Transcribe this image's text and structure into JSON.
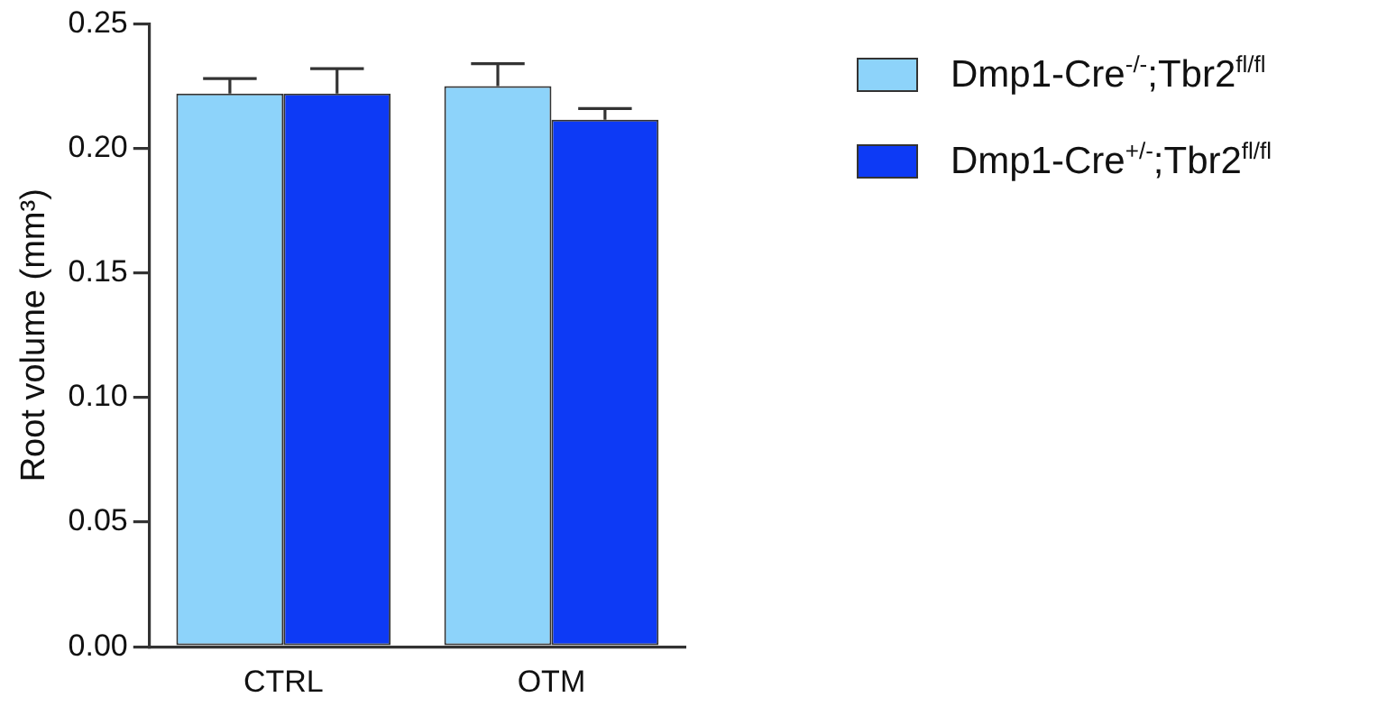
{
  "chart_data": {
    "type": "bar",
    "ylabel": "Root volume (mm³)",
    "categories": [
      "CTRL",
      "OTM"
    ],
    "series": [
      {
        "name": "Dmp1-Cre$^{-/-}$;Tbr2$^{fl/fl}$",
        "color": "#8dd3fa",
        "values": [
          0.222,
          0.225
        ],
        "errors": [
          [
            0.222,
            0.228
          ],
          [
            0.225,
            0.234
          ]
        ]
      },
      {
        "name": "Dmp1-Cre$^{+/-}$;Tbr2$^{fl/fl}$",
        "color": "#0d3af5",
        "values": [
          0.222,
          0.2115
        ],
        "errors": [
          [
            0.222,
            0.232
          ],
          [
            0.2115,
            0.216
          ]
        ]
      }
    ],
    "ylim": [
      0,
      0.25
    ],
    "yticks": [
      {
        "value": 0,
        "label": "0.00"
      },
      {
        "value": 0.05,
        "label": "0.05"
      },
      {
        "value": 0.1,
        "label": "0.10"
      },
      {
        "value": 0.15,
        "label": "0.15"
      },
      {
        "value": 0.2,
        "label": "0.20"
      },
      {
        "value": 0.25,
        "label": "0.25"
      }
    ],
    "grid": false,
    "legend": "right"
  }
}
